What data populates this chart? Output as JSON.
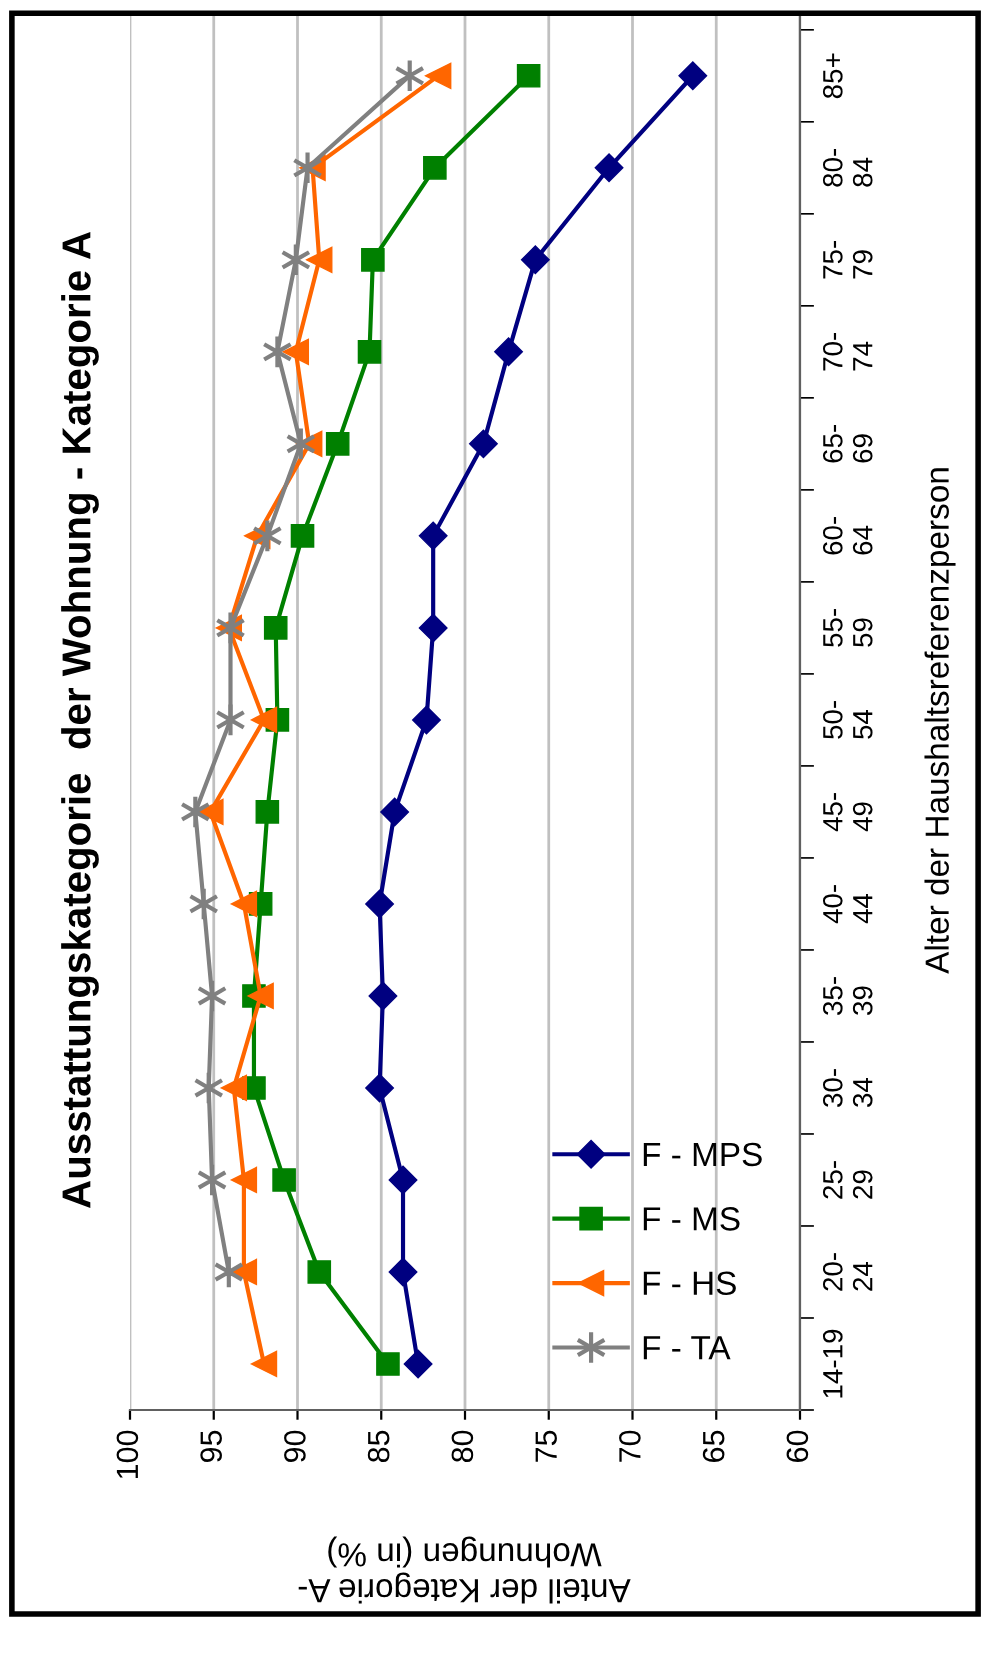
{
  "chart_data": {
    "type": "line",
    "orientation": "horizontal",
    "title": "Ausstattungskategorie  der Wohnung - Kategorie A",
    "ylabel": "Alter der Haushaltsreferenzperson",
    "xlabel": "Anteil der Kategorie A-\nWohnungen (in %)",
    "categories": [
      "85+",
      "80-\n84",
      "75-\n79",
      "70-\n74",
      "65-\n69",
      "60-\n64",
      "55-\n59",
      "50-\n54",
      "45-\n49",
      "40-\n44",
      "35-\n39",
      "30-\n34",
      "25-\n29",
      "20-\n24",
      "14-19"
    ],
    "series": [
      {
        "name": "F - MPS",
        "color": "#000080",
        "marker": "diamond",
        "values": [
          66.4,
          71.4,
          75.8,
          77.4,
          78.9,
          81.9,
          81.9,
          82.3,
          84.2,
          85.1,
          84.9,
          85.1,
          83.7,
          83.7,
          82.8
        ]
      },
      {
        "name": "F - MS",
        "color": "#008000",
        "marker": "square",
        "values": [
          76.2,
          81.8,
          85.5,
          85.7,
          87.6,
          89.7,
          91.3,
          91.2,
          91.8,
          92.2,
          92.6,
          92.6,
          90.8,
          88.7,
          84.6
        ]
      },
      {
        "name": "F - HS",
        "color": "#ff6600",
        "marker": "triangle",
        "values": [
          81.6,
          89.1,
          88.7,
          90.1,
          89.3,
          92.4,
          94.1,
          92.0,
          95.2,
          93.2,
          92.2,
          93.8,
          93.2,
          93.2,
          92.0
        ]
      },
      {
        "name": "F - TA",
        "color": "#808080",
        "marker": "cross",
        "values": [
          83.3,
          89.4,
          90.1,
          91.2,
          89.8,
          91.8,
          94.0,
          94.0,
          96.1,
          95.6,
          95.1,
          95.3,
          95.1,
          94.1,
          null
        ]
      }
    ],
    "xlim": [
      100,
      60
    ],
    "xticks": [
      100,
      95,
      90,
      85,
      80,
      75,
      70,
      65,
      60
    ],
    "grid": "x",
    "legend": "bottom right"
  }
}
